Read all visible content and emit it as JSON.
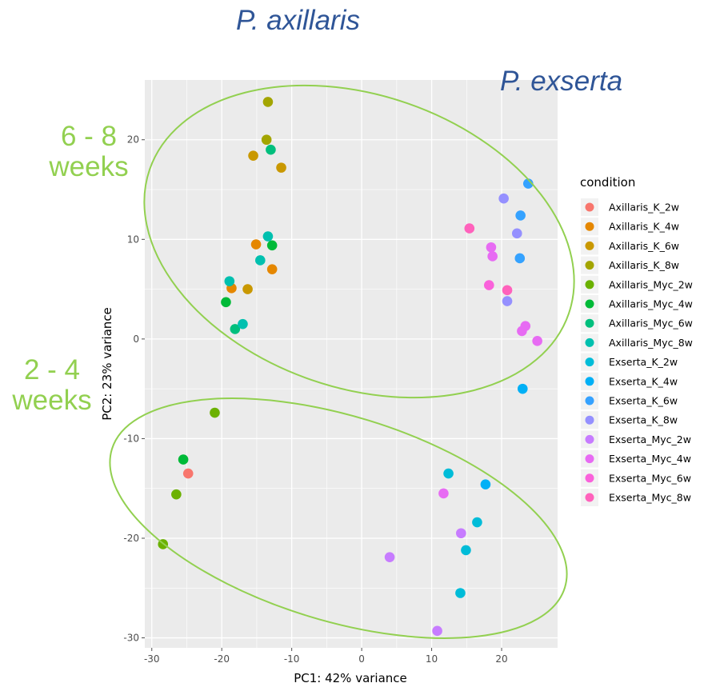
{
  "annotations": {
    "species_1": "P. axillaris",
    "species_2": "P. exserta",
    "group_upper_line1": "6 - 8",
    "group_upper_line2": "weeks",
    "group_lower_line1": "2 - 4",
    "group_lower_line2": "weeks"
  },
  "colors": {
    "species_text": "#2f5597",
    "group_text": "#92d050",
    "ellipse": "#92d050",
    "panel_bg": "#ebebeb",
    "grid": "#ffffff"
  },
  "chart_data": {
    "type": "scatter",
    "title": "",
    "xlabel": "PC1: 42% variance",
    "ylabel": "PC2: 23% variance",
    "xlim": [
      -31,
      28
    ],
    "ylim": [
      -31,
      26
    ],
    "x_ticks": [
      -30,
      -20,
      -10,
      0,
      10,
      20
    ],
    "y_ticks": [
      -30,
      -20,
      -10,
      0,
      10,
      20
    ],
    "grid": true,
    "legend_title": "condition",
    "legend_position": "right",
    "series": [
      {
        "name": "Axillaris_K_2w",
        "color": "#F8766D",
        "points": [
          [
            -24.8,
            -13.5
          ]
        ]
      },
      {
        "name": "Axillaris_K_4w",
        "color": "#E58700",
        "points": [
          [
            -18.6,
            5.1
          ],
          [
            -15.1,
            9.5
          ],
          [
            -12.8,
            7.0
          ]
        ]
      },
      {
        "name": "Axillaris_K_6w",
        "color": "#C99800",
        "points": [
          [
            -15.5,
            18.4
          ],
          [
            -11.5,
            17.2
          ],
          [
            -16.3,
            5.0
          ]
        ]
      },
      {
        "name": "Axillaris_K_8w",
        "color": "#A3A500",
        "points": [
          [
            -13.4,
            23.8
          ],
          [
            -13.6,
            20.0
          ]
        ]
      },
      {
        "name": "Axillaris_Myc_2w",
        "color": "#6BB100",
        "points": [
          [
            -21.0,
            -7.4
          ],
          [
            -26.5,
            -15.6
          ],
          [
            -28.4,
            -20.6
          ]
        ]
      },
      {
        "name": "Axillaris_Myc_4w",
        "color": "#00BA38",
        "points": [
          [
            -19.4,
            3.7
          ],
          [
            -25.5,
            -12.1
          ],
          [
            -12.8,
            9.4
          ]
        ]
      },
      {
        "name": "Axillaris_Myc_6w",
        "color": "#00BF7D",
        "points": [
          [
            -13.0,
            19.0
          ],
          [
            -18.1,
            1.0
          ]
        ]
      },
      {
        "name": "Axillaris_Myc_8w",
        "color": "#00C0AF",
        "points": [
          [
            -18.9,
            5.8
          ],
          [
            -13.4,
            10.3
          ],
          [
            -14.5,
            7.9
          ],
          [
            -17.0,
            1.5
          ]
        ]
      },
      {
        "name": "Exserta_K_2w",
        "color": "#00BCD8",
        "points": [
          [
            12.4,
            -13.5
          ],
          [
            16.5,
            -18.4
          ],
          [
            14.9,
            -21.2
          ],
          [
            14.1,
            -25.5
          ]
        ]
      },
      {
        "name": "Exserta_K_4w",
        "color": "#00B0F6",
        "points": [
          [
            17.7,
            -14.6
          ],
          [
            23.0,
            -5.0
          ]
        ]
      },
      {
        "name": "Exserta_K_6w",
        "color": "#35A2FF",
        "points": [
          [
            23.8,
            15.6
          ],
          [
            22.7,
            12.4
          ],
          [
            22.6,
            8.1
          ]
        ]
      },
      {
        "name": "Exserta_K_8w",
        "color": "#9590FF",
        "points": [
          [
            20.3,
            14.1
          ],
          [
            22.2,
            10.6
          ],
          [
            20.8,
            3.8
          ]
        ]
      },
      {
        "name": "Exserta_Myc_2w",
        "color": "#C77CFF",
        "points": [
          [
            4.0,
            -21.9
          ],
          [
            14.2,
            -19.5
          ],
          [
            10.8,
            -29.3
          ]
        ]
      },
      {
        "name": "Exserta_Myc_4w",
        "color": "#E76BF3",
        "points": [
          [
            11.7,
            -15.5
          ],
          [
            18.5,
            9.2
          ],
          [
            18.7,
            8.3
          ],
          [
            22.9,
            0.8
          ],
          [
            25.1,
            -0.2
          ],
          [
            23.4,
            1.3
          ]
        ]
      },
      {
        "name": "Exserta_Myc_6w",
        "color": "#FA62DB",
        "points": [
          [
            18.2,
            5.4
          ]
        ]
      },
      {
        "name": "Exserta_Myc_8w",
        "color": "#FF62BC",
        "points": [
          [
            15.4,
            11.1
          ],
          [
            20.8,
            4.9
          ]
        ]
      }
    ]
  }
}
